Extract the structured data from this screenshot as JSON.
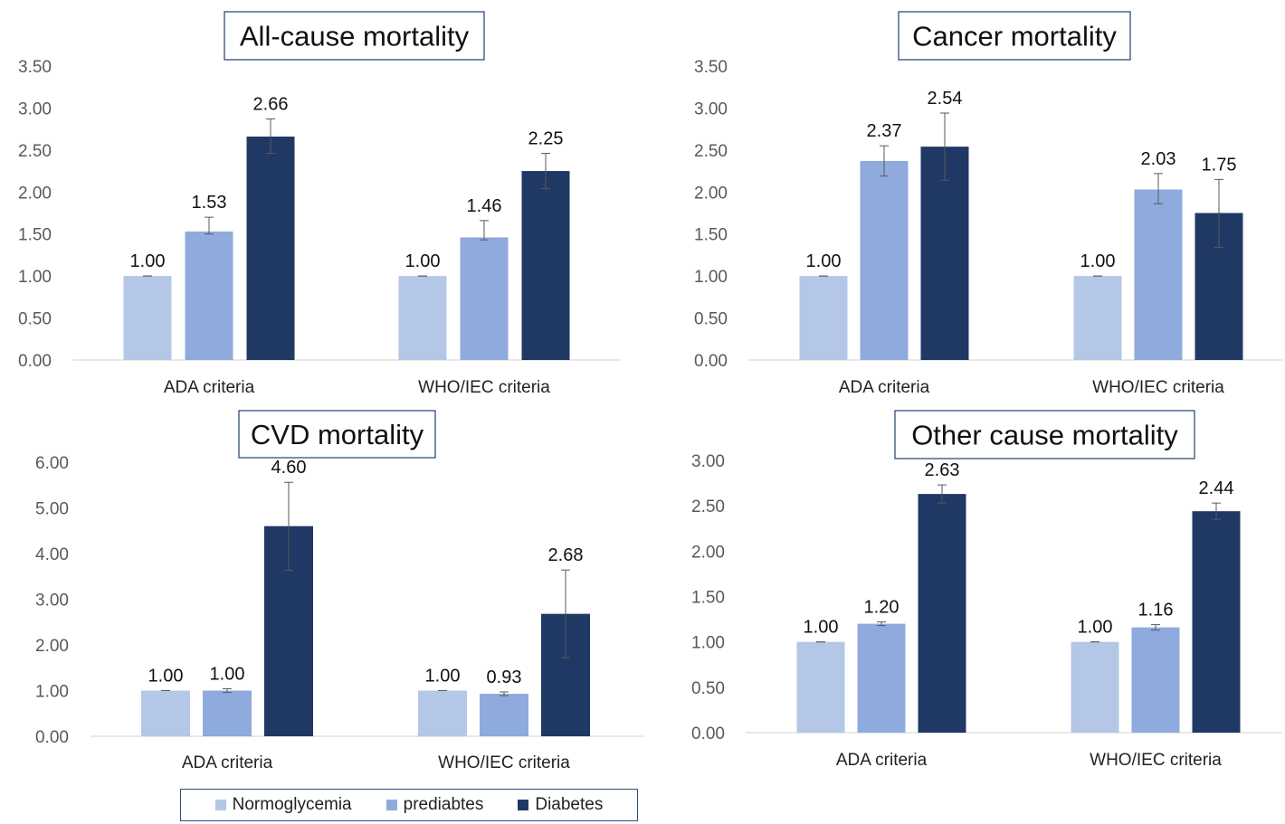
{
  "legend": {
    "items": [
      "Normoglycemia",
      "prediabtes",
      "Diabetes"
    ],
    "colors": [
      "#b4c7e7",
      "#8faadc",
      "#1f3864"
    ]
  },
  "chart_data": [
    {
      "type": "bar",
      "title": "All-cause mortality",
      "categories": [
        "ADA criteria",
        "WHO/IEC criteria"
      ],
      "ylim": [
        0,
        3.5
      ],
      "yticks": [
        "0.00",
        "0.50",
        "1.00",
        "1.50",
        "2.00",
        "2.50",
        "3.00",
        "3.50"
      ],
      "series": [
        {
          "name": "Normoglycemia",
          "values": [
            1.0,
            1.0
          ],
          "labels": [
            "1.00",
            "1.00"
          ],
          "err_low": [
            1.0,
            1.0
          ],
          "err_high": [
            1.0,
            1.0
          ]
        },
        {
          "name": "prediabtes",
          "values": [
            1.53,
            1.46
          ],
          "labels": [
            "1.53",
            "1.46"
          ],
          "err_low": [
            1.5,
            1.43
          ],
          "err_high": [
            1.7,
            1.66
          ]
        },
        {
          "name": "Diabetes",
          "values": [
            2.66,
            2.25
          ],
          "labels": [
            "2.66",
            "2.25"
          ],
          "err_low": [
            2.46,
            2.04
          ],
          "err_high": [
            2.87,
            2.46
          ]
        }
      ]
    },
    {
      "type": "bar",
      "title": "Cancer mortality",
      "categories": [
        "ADA criteria",
        "WHO/IEC criteria"
      ],
      "ylim": [
        0,
        3.5
      ],
      "yticks": [
        "0.00",
        "0.50",
        "1.00",
        "1.50",
        "2.00",
        "2.50",
        "3.00",
        "3.50"
      ],
      "series": [
        {
          "name": "Normoglycemia",
          "values": [
            1.0,
            1.0
          ],
          "labels": [
            "1.00",
            "1.00"
          ],
          "err_low": [
            1.0,
            1.0
          ],
          "err_high": [
            1.0,
            1.0
          ]
        },
        {
          "name": "prediabtes",
          "values": [
            2.37,
            2.03
          ],
          "labels": [
            "2.37",
            "2.03"
          ],
          "err_low": [
            2.19,
            1.86
          ],
          "err_high": [
            2.55,
            2.22
          ]
        },
        {
          "name": "Diabetes",
          "values": [
            2.54,
            1.75
          ],
          "labels": [
            "2.54",
            "1.75"
          ],
          "err_low": [
            2.14,
            1.34
          ],
          "err_high": [
            2.94,
            2.15
          ]
        }
      ]
    },
    {
      "type": "bar",
      "title": "CVD mortality",
      "categories": [
        "ADA criteria",
        "WHO/IEC criteria"
      ],
      "ylim": [
        0,
        6
      ],
      "yticks": [
        "0.00",
        "1.00",
        "2.00",
        "3.00",
        "4.00",
        "5.00",
        "6.00"
      ],
      "series": [
        {
          "name": "Normoglycemia",
          "values": [
            1.0,
            1.0
          ],
          "labels": [
            "1.00",
            "1.00"
          ],
          "err_low": [
            1.0,
            1.0
          ],
          "err_high": [
            1.0,
            1.0
          ]
        },
        {
          "name": "prediabtes",
          "values": [
            1.0,
            0.93
          ],
          "labels": [
            "1.00",
            "0.93"
          ],
          "err_low": [
            0.96,
            0.89
          ],
          "err_high": [
            1.04,
            0.97
          ]
        },
        {
          "name": "Diabetes",
          "values": [
            4.6,
            2.68
          ],
          "labels": [
            "4.60",
            "2.68"
          ],
          "err_low": [
            3.63,
            1.72
          ],
          "err_high": [
            5.56,
            3.64
          ]
        }
      ]
    },
    {
      "type": "bar",
      "title": "Other cause mortality",
      "categories": [
        "ADA criteria",
        "WHO/IEC criteria"
      ],
      "ylim": [
        0,
        3
      ],
      "yticks": [
        "0.00",
        "0.50",
        "1.00",
        "1.50",
        "2.00",
        "2.50",
        "3.00"
      ],
      "series": [
        {
          "name": "Normoglycemia",
          "values": [
            1.0,
            1.0
          ],
          "labels": [
            "1.00",
            "1.00"
          ],
          "err_low": [
            1.0,
            1.0
          ],
          "err_high": [
            1.0,
            1.0
          ]
        },
        {
          "name": "prediabtes",
          "values": [
            1.2,
            1.16
          ],
          "labels": [
            "1.20",
            "1.16"
          ],
          "err_low": [
            1.18,
            1.13
          ],
          "err_high": [
            1.22,
            1.19
          ]
        },
        {
          "name": "Diabetes",
          "values": [
            2.63,
            2.44
          ],
          "labels": [
            "2.63",
            "2.44"
          ],
          "err_low": [
            2.53,
            2.35
          ],
          "err_high": [
            2.73,
            2.53
          ]
        }
      ]
    }
  ]
}
